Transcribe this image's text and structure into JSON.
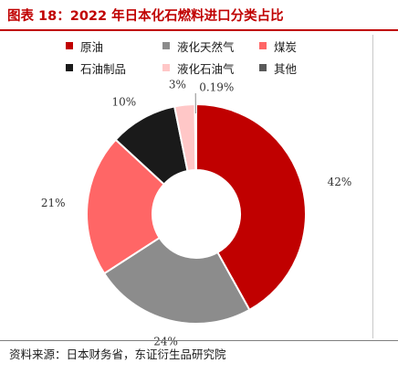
{
  "title": "图表 18：2022 年日本化石燃料进口分类占比",
  "source": "资料来源：日本财务省，东证衍生品研究院",
  "chart_data": {
    "type": "pie",
    "donut": true,
    "legend_position": "top",
    "categories": [
      "原油",
      "液化天然气",
      "煤炭",
      "石油制品",
      "液化石油气",
      "其他"
    ],
    "values": [
      42,
      24,
      21,
      10,
      3,
      0.19
    ],
    "data_labels": [
      "42%",
      "24%",
      "21%",
      "10%",
      "3%",
      "0.19%"
    ],
    "colors": [
      "#c00000",
      "#8c8c8c",
      "#ff6666",
      "#1a1a1a",
      "#ffc7c7",
      "#595959"
    ]
  }
}
